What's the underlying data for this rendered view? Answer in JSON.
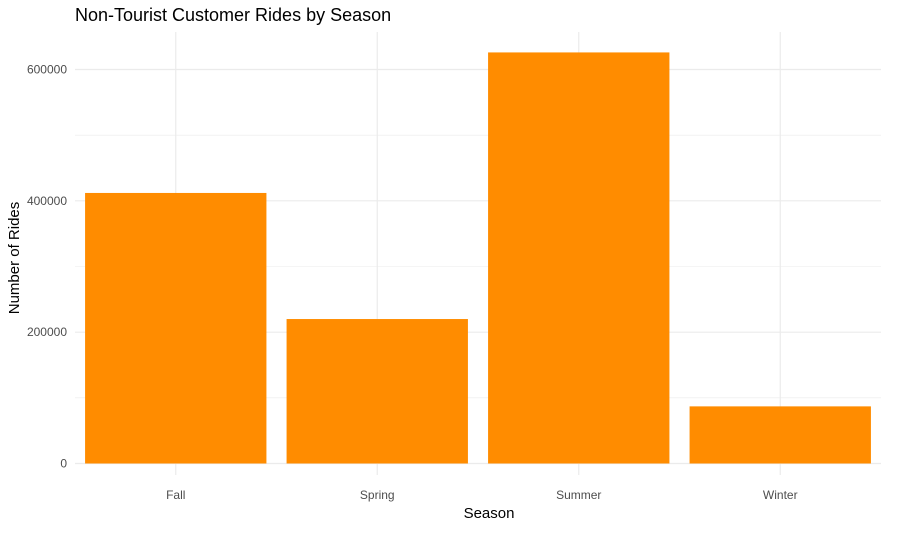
{
  "chart_data": {
    "type": "bar",
    "title": "Non-Tourist Customer Rides by Season",
    "xlabel": "Season",
    "ylabel": "Number of Rides",
    "categories": [
      "Fall",
      "Spring",
      "Summer",
      "Winter"
    ],
    "values": [
      412000,
      220000,
      626000,
      87000
    ],
    "ylim": [
      0,
      660000
    ],
    "yticks": [
      0,
      200000,
      400000,
      600000
    ],
    "ytick_labels": [
      "0",
      "200000",
      "400000",
      "600000"
    ],
    "grid": true,
    "legend": "none",
    "colors": {
      "bar": "#FF8C00",
      "grid": "#ebebeb"
    }
  }
}
